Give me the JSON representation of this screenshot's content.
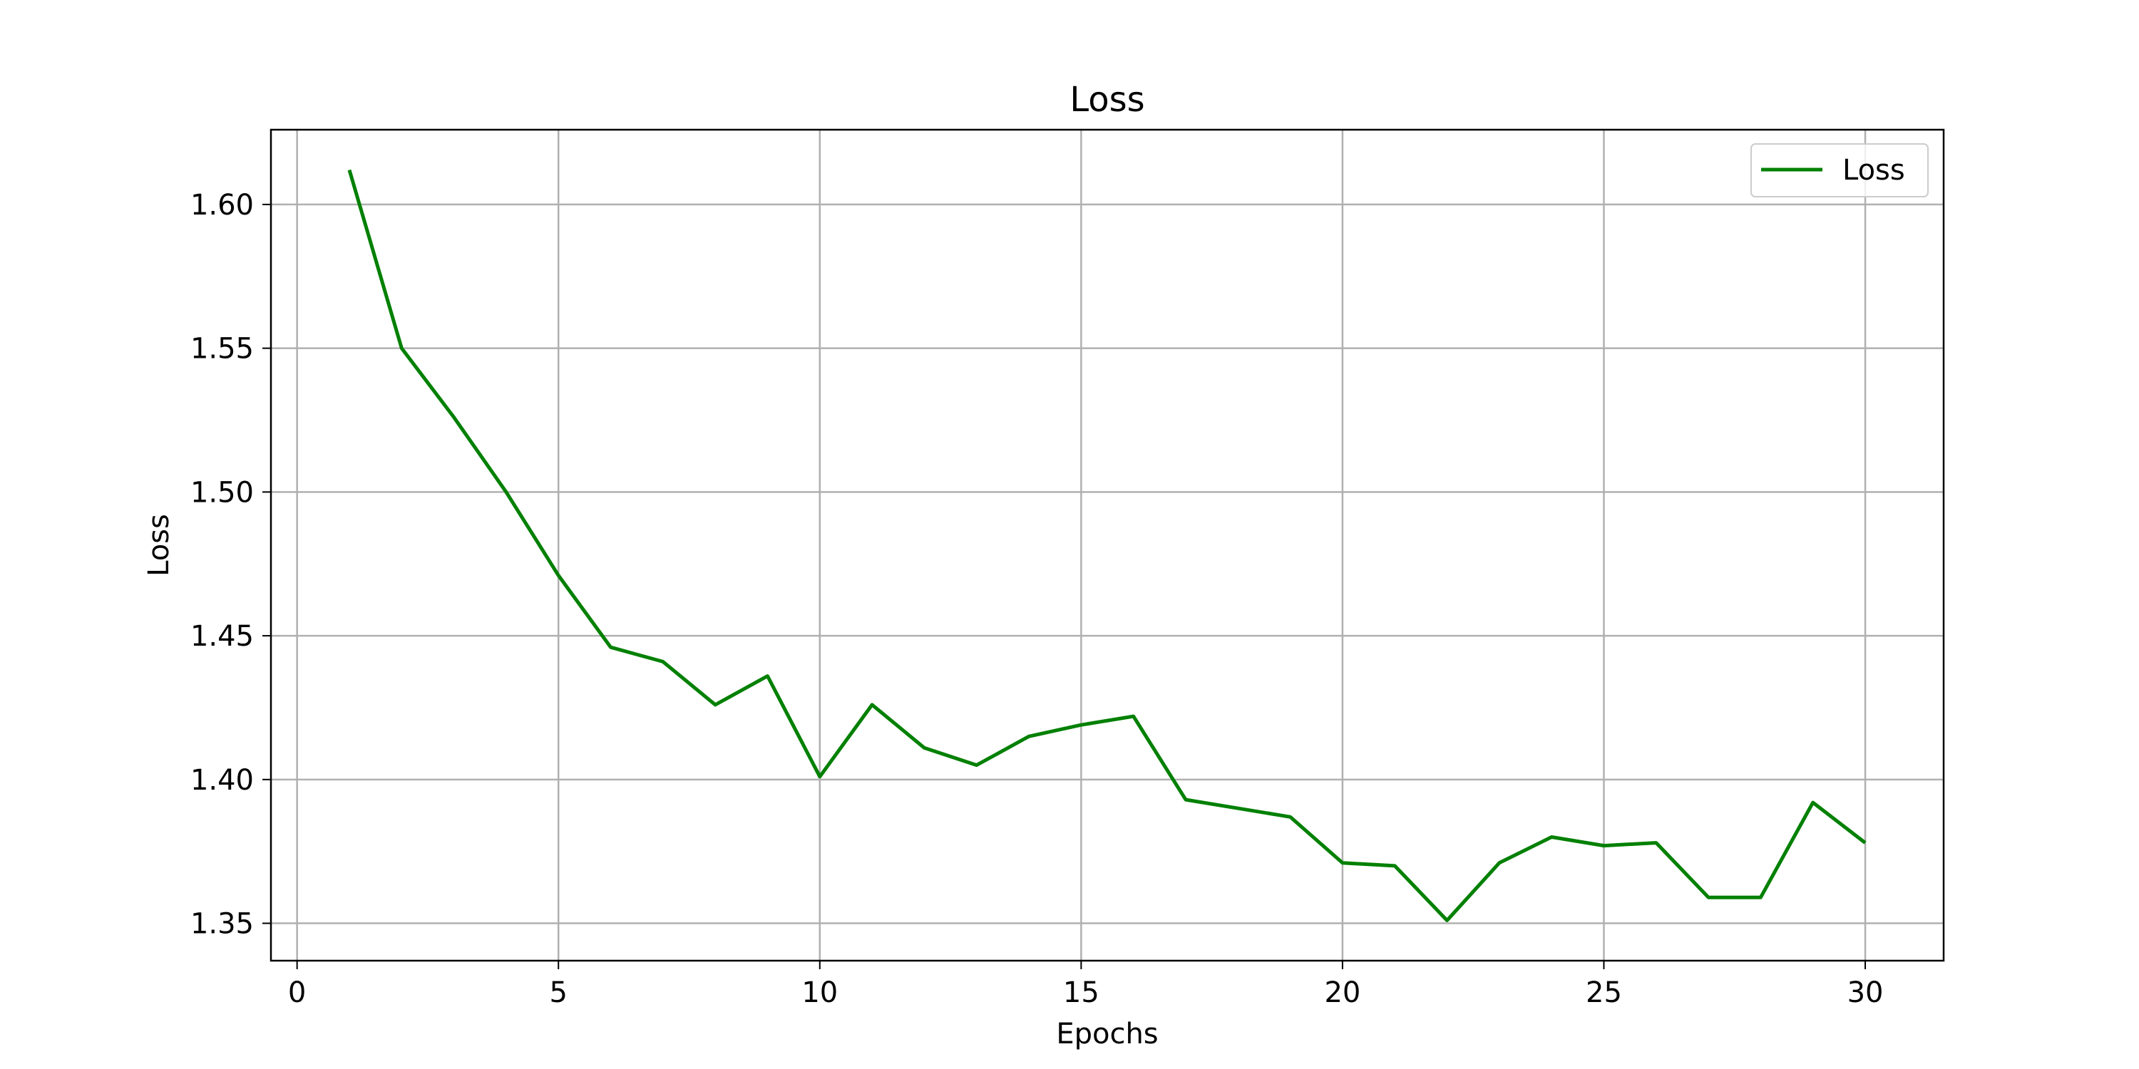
{
  "chart_data": {
    "type": "line",
    "title": "Loss",
    "xlabel": "Epochs",
    "ylabel": "Loss",
    "xlim": [
      -0.5,
      31.5
    ],
    "ylim": [
      1.337,
      1.626
    ],
    "xticks": [
      0,
      5,
      10,
      15,
      20,
      25,
      30
    ],
    "yticks": [
      1.35,
      1.4,
      1.45,
      1.5,
      1.55,
      1.6
    ],
    "ytick_labels": [
      "1.35",
      "1.40",
      "1.45",
      "1.50",
      "1.55",
      "1.60"
    ],
    "grid": true,
    "legend_position": "top-right",
    "series": [
      {
        "name": "Loss",
        "color": "#008000",
        "x": [
          1,
          2,
          3,
          4,
          5,
          6,
          7,
          8,
          9,
          10,
          11,
          12,
          13,
          14,
          15,
          16,
          17,
          18,
          19,
          20,
          21,
          22,
          23,
          24,
          25,
          26,
          27,
          28,
          29,
          30
        ],
        "y": [
          1.612,
          1.55,
          1.526,
          1.5,
          1.471,
          1.446,
          1.441,
          1.426,
          1.436,
          1.401,
          1.426,
          1.411,
          1.405,
          1.415,
          1.419,
          1.422,
          1.393,
          1.39,
          1.387,
          1.371,
          1.37,
          1.351,
          1.371,
          1.38,
          1.377,
          1.378,
          1.359,
          1.359,
          1.392,
          1.378
        ]
      }
    ]
  }
}
